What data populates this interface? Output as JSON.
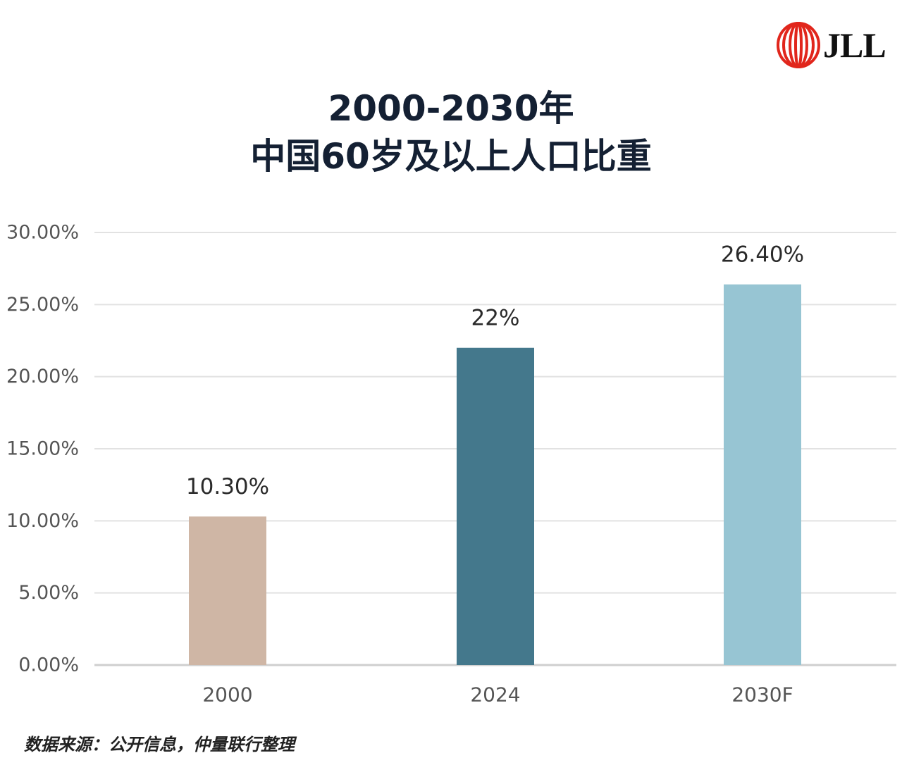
{
  "brand": {
    "logo_text": "JLL",
    "logo_color": "#e1261c"
  },
  "title_lines": [
    "2000-2030年",
    "中国60岁及以上人口比重"
  ],
  "source_note": "数据来源：公开信息，仲量联行整理",
  "chart_data": {
    "type": "bar",
    "categories": [
      "2000",
      "2024",
      "2030F"
    ],
    "values": [
      10.3,
      22,
      26.4
    ],
    "data_labels": [
      "10.30%",
      "22%",
      "26.40%"
    ],
    "colors": [
      "#cfb6a5",
      "#44788c",
      "#97c5d3"
    ],
    "ylim": [
      0,
      30
    ],
    "yticks": [
      0,
      5,
      10,
      15,
      20,
      25,
      30
    ],
    "ytick_labels": [
      "0.00%",
      "5.00%",
      "10.00%",
      "15.00%",
      "20.00%",
      "25.00%",
      "30.00%"
    ],
    "grid": true,
    "legend": "none"
  }
}
